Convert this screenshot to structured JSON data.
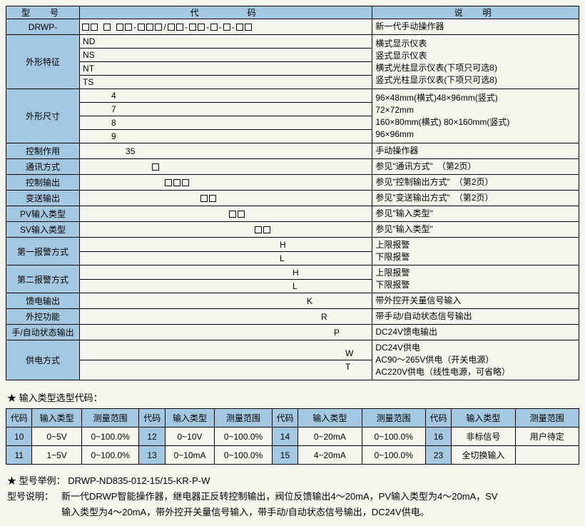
{
  "colors": {
    "header_bg": "#a4c8e1",
    "border": "#000",
    "page_bg": "#f5f5f0"
  },
  "main_table": {
    "headers": {
      "type": "型　号",
      "code": "代　　　码",
      "desc": "说　明"
    },
    "rows": [
      {
        "type": "DRWP-",
        "pattern": "MM M MM-MMM/MM-MM-M-M-MM",
        "desc": [
          "新一代手动操作器"
        ]
      },
      {
        "type": "外形特征",
        "codes": [
          "ND",
          "NS",
          "NT",
          "TS"
        ],
        "indent": 2,
        "desc": [
          "横式显示仪表",
          "竖式显示仪表",
          "横式光柱显示仪表(下项只可选8)",
          "竖式光柱显示仪表(下项只可选8)"
        ]
      },
      {
        "type": "外形尺寸",
        "codes": [
          "4",
          "7",
          "8",
          "9"
        ],
        "indent": 42,
        "desc": [
          "96×48mm(横式)48×96mm(竖式)",
          "72×72mm",
          "160×80mm(横式) 80×160mm(竖式)",
          "96×96mm"
        ]
      },
      {
        "type": "控制作用",
        "codes": [
          "35"
        ],
        "indent": 62,
        "desc": [
          "手动操作器"
        ]
      },
      {
        "type": "通讯方式",
        "pattern": "M",
        "indent": 98,
        "desc": [
          "参见\"通讯方式\"　（第2页）"
        ]
      },
      {
        "type": "控制输出",
        "pattern": "MMM",
        "indent": 116,
        "desc": [
          "参见\"控制输出方式\"　（第2页）"
        ]
      },
      {
        "type": "变送输出",
        "pattern": "MM",
        "indent": 166,
        "desc": [
          "参见\"变送输出方式\"　（第2页）"
        ]
      },
      {
        "type": "PV输入类型",
        "pattern": "MM",
        "indent": 206,
        "desc": [
          "参见\"输入类型\""
        ]
      },
      {
        "type": "SV输入类型",
        "pattern": "MM",
        "indent": 242,
        "desc": [
          "参见\"输入类型\""
        ]
      },
      {
        "type": "第一报警方式",
        "codes": [
          "H",
          "L"
        ],
        "indent": 278,
        "desc": [
          "上限报警",
          "下限报警"
        ]
      },
      {
        "type": "第二报警方式",
        "codes": [
          "H",
          "L"
        ],
        "indent": 296,
        "desc": [
          "上限报警",
          "下限报警"
        ]
      },
      {
        "type": "馈电输出",
        "codes": [
          "K"
        ],
        "indent": 316,
        "desc": [
          "带外控开关量信号输入"
        ]
      },
      {
        "type": "外控功能",
        "codes": [
          "R"
        ],
        "indent": 336,
        "desc": [
          "带手动/自动状态信号输出"
        ]
      },
      {
        "type": "手/自动状态输出",
        "codes": [
          "P"
        ],
        "indent": 354,
        "desc": [
          "DC24V馈电输出"
        ]
      },
      {
        "type": "供电方式",
        "codes": [
          "W",
          "T"
        ],
        "indent": 370,
        "desc": [
          "DC24V供电",
          "AC90～265V供电（开关电源）",
          "AC220V供电（线性电源，可省略）"
        ]
      }
    ]
  },
  "input_section": {
    "title": "★ 输入类型选型代码：",
    "headers": [
      "代码",
      "输入类型",
      "测量范围"
    ],
    "groups": [
      [
        [
          "10",
          "0~5V",
          "0~100.0%"
        ],
        [
          "11",
          "1~5V",
          "0~100.0%"
        ]
      ],
      [
        [
          "12",
          "0~10V",
          "0~100.0%"
        ],
        [
          "13",
          "0~10mA",
          "0~100.0%"
        ]
      ],
      [
        [
          "14",
          "0~20mA",
          "0~100.0%"
        ],
        [
          "15",
          "4~20mA",
          "0~100.0%"
        ]
      ],
      [
        [
          "16",
          "非标信号",
          "用户待定"
        ],
        [
          "23",
          "全切换输入",
          ""
        ]
      ]
    ]
  },
  "example": {
    "title": "★ 型号举例：",
    "model": "DRWP-ND835-012-15/15-KR-P-W",
    "desc_label": "型号说明：",
    "desc1": "新一代DRWP智能操作器，继电器正反转控制输出，阀位反馈输出4～20mA，PV输入类型为4～20mA，SV",
    "desc2": "输入类型为4～20mA，带外控开关量信号输入，带手动/自动状态信号输出，DC24V供电。"
  }
}
